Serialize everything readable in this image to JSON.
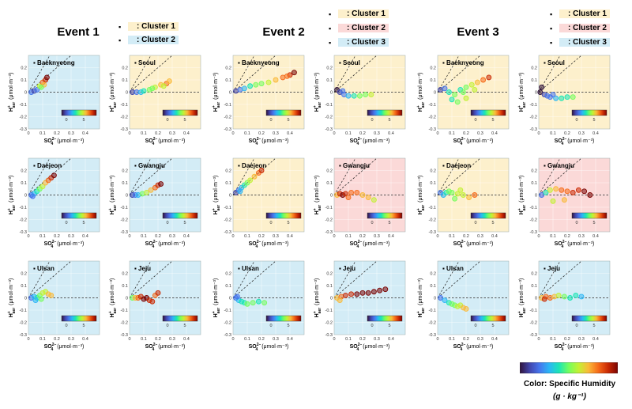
{
  "events": [
    {
      "id": "e1",
      "title": "Event 1",
      "clusters": [
        {
          "label": ": Cluster 1",
          "color": "#fdf0cc"
        },
        {
          "label": ": Cluster 2",
          "color": "#d3ecf6"
        }
      ]
    },
    {
      "id": "e2",
      "title": "Event 2",
      "clusters": [
        {
          "label": ": Cluster 1",
          "color": "#fdf0cc"
        },
        {
          "label": ": Cluster 2",
          "color": "#fbd9d8"
        },
        {
          "label": ": Cluster 3",
          "color": "#d3ecf6"
        }
      ]
    },
    {
      "id": "e3",
      "title": "Event 3",
      "clusters": [
        {
          "label": ": Cluster 1",
          "color": "#fdf0cc"
        },
        {
          "label": ": Cluster 2",
          "color": "#fbd9d8"
        },
        {
          "label": ": Cluster 3",
          "color": "#d3ecf6"
        }
      ]
    }
  ],
  "legend_bullet": "▪",
  "colorbar": {
    "title_line1": "Color: Specific Humidity",
    "title_line2": "(g · kg⁻¹)",
    "mini_ticks": [
      "0",
      "5"
    ]
  },
  "axis_labels": {
    "xlabel_main": "SO",
    "xlabel_sup": "2−",
    "xlabel_sub": "4",
    "xlabel_unit": " (μmol·m⁻³)",
    "ylabel_main": "H",
    "ylabel_sup": "+",
    "ylabel_sub": "aer",
    "ylabel_unit": " (μmol·m⁻³)"
  },
  "chart_data": {
    "type": "scatter",
    "xlim": [
      0,
      0.5
    ],
    "ylim": [
      -0.3,
      0.3
    ],
    "xticks": [
      "0",
      "0.1",
      "0.2",
      "0.3",
      "0.4"
    ],
    "yticks": [
      "0.2",
      "0.1",
      "0",
      "-0.1",
      "-0.2",
      "-0.3"
    ],
    "panels": [
      {
        "event": "Event 1",
        "site": "Baeknyeong",
        "cluster": "Cluster 2",
        "points": [
          [
            0.02,
            0.0,
            3
          ],
          [
            0.04,
            0.01,
            2
          ],
          [
            0.06,
            0.02,
            3
          ],
          [
            0.08,
            0.05,
            7
          ],
          [
            0.1,
            0.08,
            9
          ],
          [
            0.12,
            0.1,
            10
          ],
          [
            0.11,
            0.06,
            8
          ],
          [
            0.09,
            0.04,
            6
          ],
          [
            0.13,
            0.12,
            11
          ]
        ]
      },
      {
        "event": "Event 1",
        "site": "Seoul",
        "cluster": "Cluster 1",
        "points": [
          [
            0.02,
            0.0,
            2
          ],
          [
            0.05,
            0.0,
            3
          ],
          [
            0.08,
            0.0,
            4
          ],
          [
            0.1,
            0.01,
            5
          ],
          [
            0.14,
            0.02,
            6
          ],
          [
            0.18,
            0.04,
            7
          ],
          [
            0.22,
            0.06,
            8
          ],
          [
            0.26,
            0.07,
            9
          ],
          [
            0.28,
            0.09,
            8
          ],
          [
            0.24,
            0.05,
            7
          ],
          [
            0.16,
            0.03,
            6
          ]
        ]
      },
      {
        "event": "Event 2",
        "site": "Baeknyeong",
        "cluster": "Cluster 1",
        "points": [
          [
            0.02,
            0.01,
            2
          ],
          [
            0.05,
            0.02,
            3
          ],
          [
            0.08,
            0.03,
            4
          ],
          [
            0.12,
            0.05,
            5
          ],
          [
            0.16,
            0.06,
            6
          ],
          [
            0.2,
            0.07,
            6
          ],
          [
            0.25,
            0.08,
            7
          ],
          [
            0.3,
            0.1,
            8
          ],
          [
            0.35,
            0.12,
            9
          ],
          [
            0.4,
            0.14,
            10
          ],
          [
            0.43,
            0.16,
            11
          ],
          [
            0.38,
            0.13,
            9
          ]
        ]
      },
      {
        "event": "Event 2",
        "site": "Seoul",
        "cluster": "Cluster 1",
        "points": [
          [
            0.02,
            0.02,
            1
          ],
          [
            0.04,
            0.0,
            2
          ],
          [
            0.07,
            -0.02,
            3
          ],
          [
            0.1,
            -0.03,
            4
          ],
          [
            0.14,
            -0.03,
            5
          ],
          [
            0.18,
            -0.03,
            6
          ],
          [
            0.22,
            -0.02,
            6
          ],
          [
            0.26,
            -0.02,
            7
          ],
          [
            0.06,
            0.01,
            3
          ]
        ]
      },
      {
        "event": "Event 3",
        "site": "Baeknyeong",
        "cluster": "Cluster 1",
        "points": [
          [
            0.02,
            0.02,
            2
          ],
          [
            0.05,
            0.03,
            3
          ],
          [
            0.08,
            0.0,
            5
          ],
          [
            0.12,
            -0.02,
            6
          ],
          [
            0.16,
            0.02,
            5
          ],
          [
            0.2,
            0.04,
            6
          ],
          [
            0.24,
            0.06,
            7
          ],
          [
            0.28,
            0.08,
            8
          ],
          [
            0.32,
            0.1,
            9
          ],
          [
            0.36,
            0.12,
            10
          ],
          [
            0.1,
            -0.06,
            5
          ],
          [
            0.14,
            -0.08,
            6
          ],
          [
            0.2,
            -0.05,
            7
          ],
          [
            0.18,
            0.0,
            6
          ],
          [
            0.26,
            0.02,
            7
          ]
        ]
      },
      {
        "event": "Event 3",
        "site": "Seoul",
        "cluster": "Cluster 1",
        "points": [
          [
            0.01,
            0.0,
            1
          ],
          [
            0.02,
            0.04,
            1
          ],
          [
            0.04,
            -0.02,
            2
          ],
          [
            0.06,
            -0.03,
            3
          ],
          [
            0.08,
            -0.04,
            3
          ],
          [
            0.12,
            -0.05,
            4
          ],
          [
            0.16,
            -0.05,
            5
          ],
          [
            0.2,
            -0.04,
            5
          ],
          [
            0.24,
            -0.04,
            6
          ],
          [
            0.1,
            -0.02,
            3
          ]
        ]
      },
      {
        "event": "Event 1",
        "site": "Daejeon",
        "cluster": "Cluster 2",
        "points": [
          [
            0.02,
            0.0,
            3
          ],
          [
            0.04,
            0.01,
            4
          ],
          [
            0.06,
            0.03,
            5
          ],
          [
            0.08,
            0.05,
            6
          ],
          [
            0.1,
            0.07,
            7
          ],
          [
            0.12,
            0.1,
            8
          ],
          [
            0.14,
            0.12,
            9
          ],
          [
            0.16,
            0.14,
            10
          ],
          [
            0.18,
            0.16,
            11
          ],
          [
            0.03,
            -0.01,
            3
          ]
        ]
      },
      {
        "event": "Event 1",
        "site": "Gwangju",
        "cluster": "Cluster 2",
        "points": [
          [
            0.02,
            0.0,
            2
          ],
          [
            0.04,
            0.0,
            3
          ],
          [
            0.06,
            0.0,
            4
          ],
          [
            0.09,
            0.01,
            6
          ],
          [
            0.12,
            0.02,
            7
          ],
          [
            0.15,
            0.04,
            8
          ],
          [
            0.18,
            0.06,
            9
          ],
          [
            0.2,
            0.08,
            10
          ],
          [
            0.22,
            0.09,
            11
          ]
        ]
      },
      {
        "event": "Event 2",
        "site": "Daejeon",
        "cluster": "Cluster 1",
        "points": [
          [
            0.02,
            0.02,
            2
          ],
          [
            0.04,
            0.04,
            3
          ],
          [
            0.06,
            0.06,
            4
          ],
          [
            0.08,
            0.08,
            5
          ],
          [
            0.1,
            0.1,
            6
          ],
          [
            0.12,
            0.12,
            7
          ],
          [
            0.15,
            0.15,
            8
          ],
          [
            0.18,
            0.18,
            9
          ],
          [
            0.2,
            0.2,
            10
          ],
          [
            0.05,
            0.03,
            4
          ]
        ]
      },
      {
        "event": "Event 2",
        "site": "Gwangju",
        "cluster": "Cluster 2",
        "points": [
          [
            0.02,
            0.0,
            8
          ],
          [
            0.04,
            0.01,
            10
          ],
          [
            0.06,
            0.0,
            11
          ],
          [
            0.08,
            0.01,
            10
          ],
          [
            0.12,
            0.02,
            9
          ],
          [
            0.16,
            0.02,
            9
          ],
          [
            0.2,
            0.0,
            8
          ],
          [
            0.24,
            -0.02,
            8
          ],
          [
            0.28,
            -0.04,
            7
          ],
          [
            0.1,
            -0.02,
            9
          ]
        ]
      },
      {
        "event": "Event 3",
        "site": "Daejeon",
        "cluster": "Cluster 1",
        "points": [
          [
            0.02,
            0.02,
            3
          ],
          [
            0.04,
            0.0,
            4
          ],
          [
            0.06,
            0.02,
            5
          ],
          [
            0.08,
            0.03,
            6
          ],
          [
            0.1,
            0.02,
            6
          ],
          [
            0.14,
            0.01,
            7
          ],
          [
            0.18,
            0.0,
            7
          ],
          [
            0.22,
            -0.02,
            8
          ],
          [
            0.26,
            0.0,
            9
          ],
          [
            0.12,
            -0.03,
            6
          ],
          [
            0.16,
            0.04,
            7
          ]
        ]
      },
      {
        "event": "Event 3",
        "site": "Gwangju",
        "cluster": "Cluster 2",
        "points": [
          [
            0.02,
            0.0,
            3
          ],
          [
            0.05,
            0.02,
            5
          ],
          [
            0.08,
            0.04,
            7
          ],
          [
            0.12,
            0.05,
            8
          ],
          [
            0.16,
            0.04,
            9
          ],
          [
            0.2,
            0.03,
            9
          ],
          [
            0.24,
            0.02,
            10
          ],
          [
            0.28,
            0.04,
            10
          ],
          [
            0.32,
            0.03,
            11
          ],
          [
            0.36,
            0.0,
            11
          ],
          [
            0.1,
            -0.05,
            7
          ],
          [
            0.18,
            -0.04,
            8
          ]
        ]
      },
      {
        "event": "Event 1",
        "site": "Ulsan",
        "cluster": "Cluster 2",
        "points": [
          [
            0.02,
            0.0,
            3
          ],
          [
            0.04,
            0.01,
            4
          ],
          [
            0.06,
            0.0,
            5
          ],
          [
            0.08,
            0.02,
            6
          ],
          [
            0.1,
            0.04,
            7
          ],
          [
            0.12,
            0.05,
            7
          ],
          [
            0.14,
            0.03,
            8
          ],
          [
            0.16,
            0.02,
            8
          ],
          [
            0.05,
            -0.02,
            4
          ],
          [
            0.09,
            -0.01,
            6
          ]
        ]
      },
      {
        "event": "Event 1",
        "site": "Jeju",
        "cluster": "Cluster 2",
        "points": [
          [
            0.02,
            0.0,
            6
          ],
          [
            0.04,
            0.0,
            8
          ],
          [
            0.06,
            0.0,
            9
          ],
          [
            0.08,
            0.01,
            10
          ],
          [
            0.1,
            -0.01,
            11
          ],
          [
            0.12,
            0.0,
            11
          ],
          [
            0.14,
            -0.02,
            10
          ],
          [
            0.16,
            -0.03,
            10
          ],
          [
            0.18,
            0.02,
            9
          ],
          [
            0.2,
            0.04,
            10
          ]
        ]
      },
      {
        "event": "Event 2",
        "site": "Ulsan",
        "cluster": "Cluster 3",
        "points": [
          [
            0.02,
            0.0,
            3
          ],
          [
            0.04,
            -0.02,
            4
          ],
          [
            0.06,
            -0.03,
            5
          ],
          [
            0.08,
            -0.04,
            5
          ],
          [
            0.1,
            -0.05,
            6
          ],
          [
            0.14,
            -0.04,
            6
          ],
          [
            0.18,
            -0.03,
            5
          ],
          [
            0.22,
            -0.04,
            6
          ],
          [
            0.03,
            0.01,
            3
          ]
        ]
      },
      {
        "event": "Event 2",
        "site": "Jeju",
        "cluster": "Cluster 3",
        "points": [
          [
            0.02,
            0.0,
            8
          ],
          [
            0.05,
            0.01,
            9
          ],
          [
            0.08,
            0.02,
            10
          ],
          [
            0.12,
            0.03,
            10
          ],
          [
            0.16,
            0.03,
            11
          ],
          [
            0.2,
            0.04,
            11
          ],
          [
            0.24,
            0.04,
            11
          ],
          [
            0.28,
            0.05,
            11
          ],
          [
            0.32,
            0.06,
            11
          ],
          [
            0.36,
            0.07,
            11
          ],
          [
            0.04,
            -0.02,
            8
          ]
        ]
      },
      {
        "event": "Event 3",
        "site": "Ulsan",
        "cluster": "Cluster 3",
        "points": [
          [
            0.02,
            0.0,
            3
          ],
          [
            0.05,
            -0.02,
            4
          ],
          [
            0.08,
            -0.04,
            5
          ],
          [
            0.1,
            -0.05,
            6
          ],
          [
            0.12,
            -0.06,
            6
          ],
          [
            0.14,
            -0.07,
            7
          ],
          [
            0.16,
            -0.06,
            7
          ],
          [
            0.18,
            -0.08,
            8
          ],
          [
            0.2,
            -0.09,
            8
          ]
        ]
      },
      {
        "event": "Event 3",
        "site": "Jeju",
        "cluster": "Cluster 3",
        "points": [
          [
            0.02,
            0.0,
            8
          ],
          [
            0.05,
            0.01,
            9
          ],
          [
            0.08,
            0.0,
            9
          ],
          [
            0.11,
            0.01,
            8
          ],
          [
            0.14,
            0.02,
            7
          ],
          [
            0.18,
            0.01,
            6
          ],
          [
            0.22,
            0.0,
            5
          ],
          [
            0.26,
            0.02,
            5
          ],
          [
            0.3,
            0.01,
            4
          ],
          [
            0.04,
            -0.01,
            10
          ]
        ]
      }
    ]
  }
}
